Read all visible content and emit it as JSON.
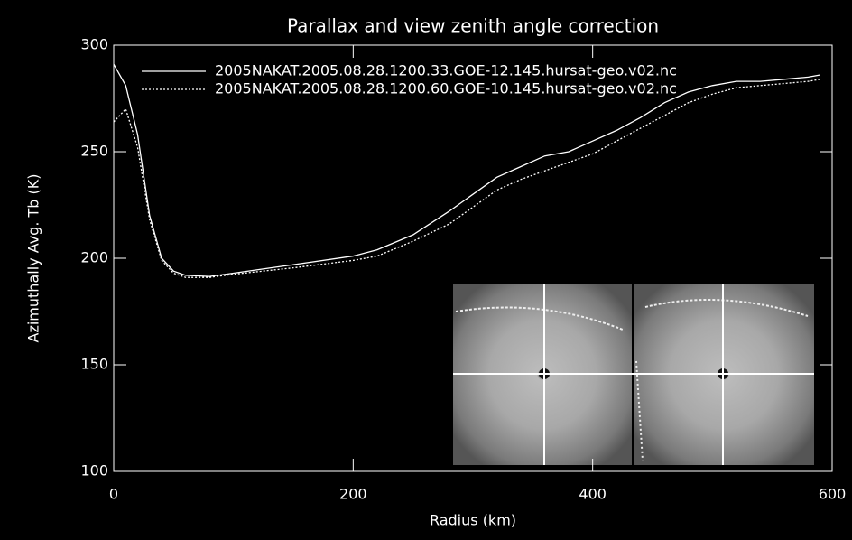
{
  "chart_data": {
    "type": "line",
    "title": "Parallax and view zenith angle correction",
    "x_label": "Radius (km)",
    "y_label": "Azimuthally Avg. Tb (K)",
    "x": [
      0,
      10,
      20,
      30,
      40,
      50,
      60,
      80,
      100,
      150,
      200,
      220,
      250,
      280,
      300,
      320,
      340,
      360,
      380,
      400,
      420,
      440,
      460,
      480,
      500,
      520,
      540,
      560,
      580,
      590
    ],
    "series": [
      {
        "name": "2005NAKAT.2005.08.28.1200.33.GOE-12.145.hursat-geo.v02.nc",
        "color": "#ffffff",
        "line_style": "solid",
        "values": [
          291,
          281,
          258,
          220,
          200,
          194,
          192,
          191.5,
          193,
          197,
          201,
          204,
          211,
          222,
          230,
          238,
          243,
          248,
          250,
          255,
          260,
          266,
          273,
          278,
          281,
          283,
          283,
          284,
          285,
          286
        ]
      },
      {
        "name": "2005NAKAT.2005.08.28.1200.60.GOE-10.145.hursat-geo.v02.nc",
        "color": "#ffffff",
        "line_style": "dotted",
        "values": [
          264,
          270,
          252,
          218,
          199,
          193,
          191,
          191,
          192.5,
          195.5,
          199,
          201,
          208,
          216,
          224,
          232,
          237,
          241,
          245,
          249,
          255,
          261,
          267,
          273,
          277,
          280,
          281,
          282,
          283,
          284
        ]
      }
    ],
    "xlim": [
      0,
      600
    ],
    "xticks": [
      0,
      200,
      400,
      600
    ],
    "ylim": [
      100,
      300
    ],
    "yticks": [
      100,
      150,
      200,
      250,
      300
    ],
    "legend": "top-left"
  }
}
